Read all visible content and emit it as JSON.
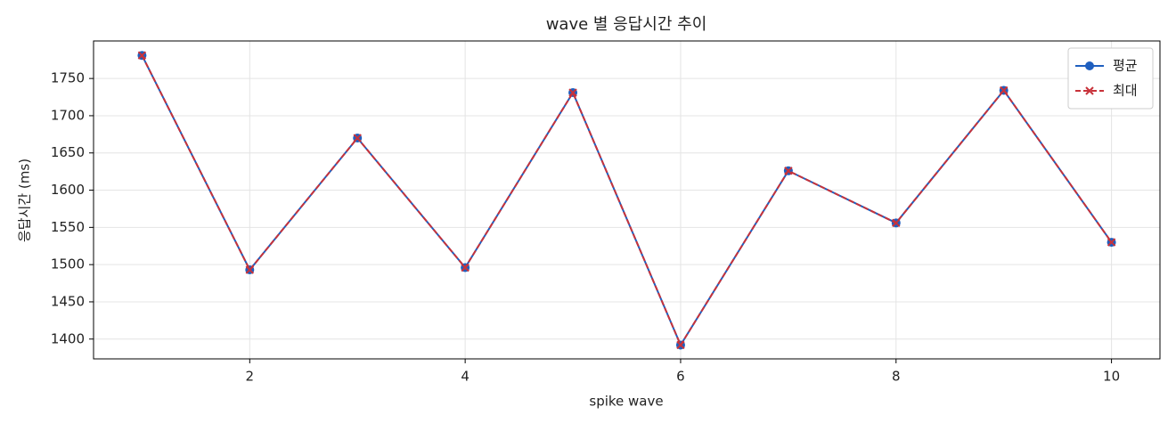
{
  "chart_data": {
    "type": "line",
    "title": "wave 별 응답시간 추이",
    "x_label": "spike wave",
    "y_label": "응답시간 (ms)",
    "x": [
      1,
      2,
      3,
      4,
      5,
      6,
      7,
      8,
      9,
      10
    ],
    "series": [
      {
        "name": "평균",
        "color": "#1f5fbf",
        "marker": "o",
        "dash": false,
        "values": [
          1781,
          1493,
          1670,
          1496,
          1731,
          1392,
          1626,
          1556,
          1734,
          1530
        ]
      },
      {
        "name": "최대",
        "color": "#c8323a",
        "marker": "x",
        "dash": true,
        "values": [
          1781,
          1493,
          1670,
          1496,
          1731,
          1392,
          1626,
          1556,
          1734,
          1530
        ]
      }
    ],
    "xlim": [
      0.55,
      10.45
    ],
    "xticks": [
      2,
      4,
      6,
      8,
      10
    ],
    "ylim": [
      1373.4,
      1800.4
    ],
    "yticks": [
      1400,
      1450,
      1500,
      1550,
      1600,
      1650,
      1700,
      1750
    ],
    "grid": true,
    "legend": "upper right"
  }
}
